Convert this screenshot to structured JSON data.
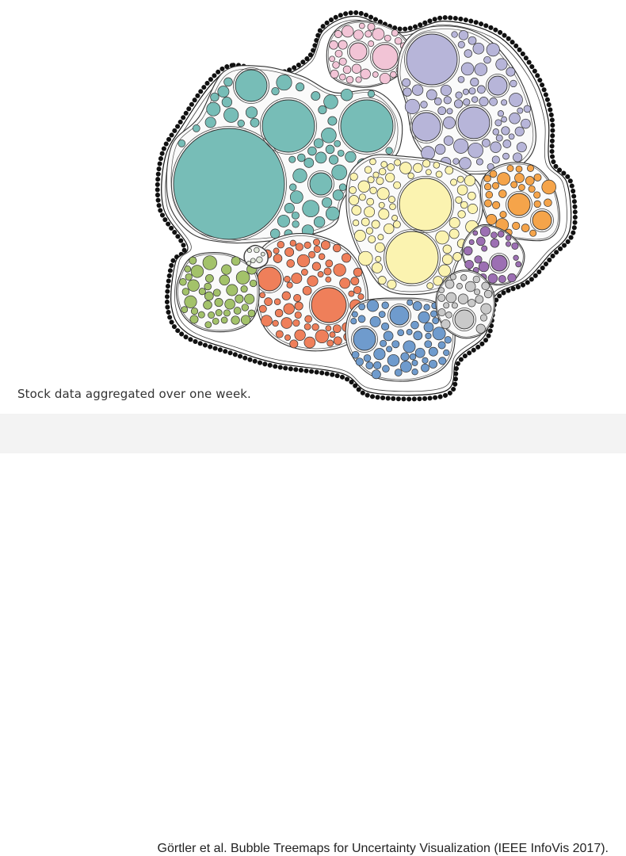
{
  "caption": "Stock data aggregated over one week.",
  "citation": "Görtler et al. Bubble Treemaps for Uncertainty Visualization (IEEE InfoVis 2017).",
  "colors": {
    "teal": "#77bdb7",
    "pink": "#f2c4d6",
    "lavender": "#b7b5d9",
    "yellow": "#fbf3b0",
    "orange": "#f5a44a",
    "purple": "#9c6fb3",
    "coral": "#ef7f5a",
    "green": "#a3c26a",
    "blue": "#6f9bcd",
    "gray": "#c9c9c9",
    "outline": "#111111"
  }
}
